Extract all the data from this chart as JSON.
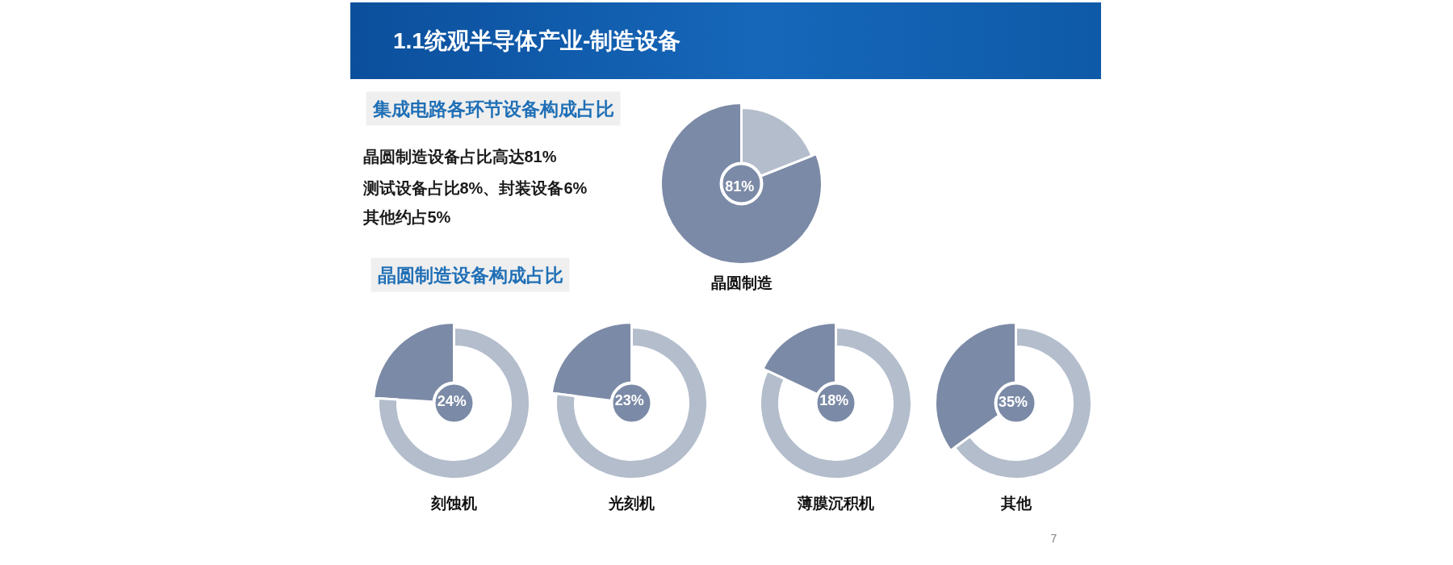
{
  "chart_data": [
    {
      "type": "other",
      "title": "1.1统观半导体产业-制造设备",
      "subtitle": "集成电路各环节设备构成占比",
      "annotations": [
        "晶圆制造设备占比高达81%",
        "测试设备占比8%、封装设备6%",
        "其他约占5%"
      ]
    },
    {
      "type": "donut",
      "title": "晶圆制造",
      "categories": [
        null,
        null
      ],
      "values": [
        81,
        19
      ],
      "colors": [
        "#7b8aa6",
        "#b3bdcc"
      ],
      "value_labels": [
        "81%",
        null
      ]
    },
    {
      "type": "other",
      "title": "晶圆制造设备构成占比"
    },
    {
      "type": "donut",
      "title": "刻蚀机",
      "categories": [
        null,
        null
      ],
      "values": [
        24,
        76
      ],
      "colors": [
        "#7b8aa6",
        "#b3bdcc"
      ],
      "value_labels": [
        "24%",
        null
      ]
    },
    {
      "type": "donut",
      "title": "光刻机",
      "categories": [
        null,
        null
      ],
      "values": [
        23,
        77
      ],
      "colors": [
        "#7b8aa6",
        "#b3bdcc"
      ],
      "value_labels": [
        "23%",
        null
      ]
    },
    {
      "type": "donut",
      "title": "薄膜沉积机",
      "categories": [
        null,
        null
      ],
      "values": [
        18,
        82
      ],
      "colors": [
        "#7b8aa6",
        "#b3bdcc"
      ],
      "value_labels": [
        "18%",
        null
      ]
    },
    {
      "type": "donut",
      "title": "其他",
      "categories": [
        null,
        null
      ],
      "values": [
        35,
        65
      ],
      "colors": [
        "#7b8aa6",
        "#b3bdcc"
      ],
      "value_labels": [
        "35%",
        null
      ],
      "annotations": [
        "7"
      ]
    }
  ]
}
